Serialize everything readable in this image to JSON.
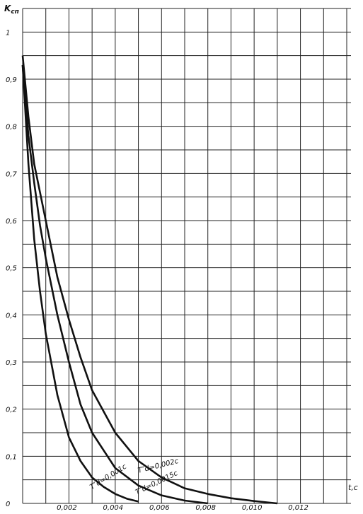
{
  "chart_data": {
    "type": "line",
    "ylabel": {
      "main": "K",
      "sub": "сп"
    },
    "xlabel": "t,c",
    "xlim": [
      0,
      0.014
    ],
    "ylim": [
      0,
      1.05
    ],
    "xticks": [
      {
        "value": 0.002,
        "label": "0,002"
      },
      {
        "value": 0.004,
        "label": "0,004"
      },
      {
        "value": 0.006,
        "label": "0,006"
      },
      {
        "value": 0.008,
        "label": "0,008"
      },
      {
        "value": 0.01,
        "label": "0,010"
      },
      {
        "value": 0.012,
        "label": "0,012"
      }
    ],
    "yticks": [
      0,
      {
        "value": 0.1,
        "label": "0,1"
      },
      {
        "value": 0.2,
        "label": "0,2"
      },
      {
        "value": 0.3,
        "label": "0,3"
      },
      {
        "value": 0.4,
        "label": "0,4"
      },
      {
        "value": 0.5,
        "label": "0,5"
      },
      {
        "value": 0.6,
        "label": "0,6"
      },
      {
        "value": 0.7,
        "label": "0,7"
      },
      {
        "value": 0.8,
        "label": "0,8"
      },
      {
        "value": 0.9,
        "label": "0,9"
      },
      1
    ],
    "xgrid": [
      0,
      0.001,
      0.002,
      0.003,
      0.004,
      0.005,
      0.006,
      0.007,
      0.008,
      0.009,
      0.01,
      0.011,
      0.012,
      0.013,
      0.014
    ],
    "ygrid": [
      0,
      0.05,
      0.1,
      0.15,
      0.2,
      0.25,
      0.3,
      0.35,
      0.4,
      0.45,
      0.5,
      0.55,
      0.6,
      0.65,
      0.7,
      0.75,
      0.8,
      0.85,
      0.9,
      0.95,
      1,
      1.05
    ],
    "grid": true,
    "series": [
      {
        "name": "T″d=0,001c",
        "color": "#111111",
        "x": [
          0,
          0.00025,
          0.0005,
          0.00075,
          0.001,
          0.0015,
          0.002,
          0.0025,
          0.003,
          0.0035,
          0.004,
          0.0045,
          0.005
        ],
        "values": [
          0.93,
          0.72,
          0.56,
          0.45,
          0.36,
          0.23,
          0.14,
          0.09,
          0.055,
          0.035,
          0.02,
          0.01,
          0.004
        ]
      },
      {
        "name": "T″d=0,0015c",
        "color": "#111111",
        "x": [
          0,
          0.00025,
          0.0005,
          0.00075,
          0.001,
          0.0015,
          0.002,
          0.0025,
          0.003,
          0.004,
          0.005,
          0.006,
          0.007,
          0.008
        ],
        "values": [
          0.93,
          0.78,
          0.68,
          0.59,
          0.52,
          0.4,
          0.3,
          0.21,
          0.15,
          0.075,
          0.038,
          0.017,
          0.006,
          0
        ]
      },
      {
        "name": "T″d=0,002c",
        "color": "#111111",
        "x": [
          0,
          0.00025,
          0.0005,
          0.00075,
          0.001,
          0.0015,
          0.002,
          0.0025,
          0.003,
          0.004,
          0.005,
          0.006,
          0.007,
          0.008,
          0.009,
          0.01,
          0.011
        ],
        "values": [
          0.95,
          0.82,
          0.72,
          0.66,
          0.6,
          0.48,
          0.39,
          0.31,
          0.24,
          0.15,
          0.09,
          0.055,
          0.032,
          0.02,
          0.011,
          0.005,
          0
        ]
      }
    ]
  }
}
